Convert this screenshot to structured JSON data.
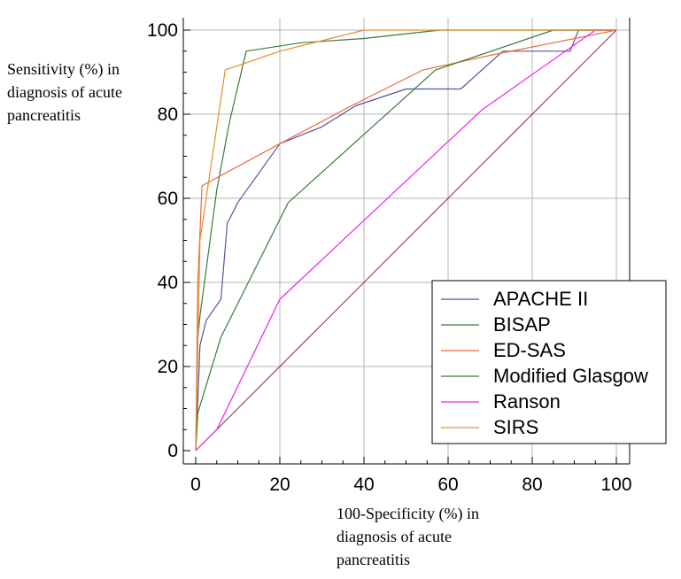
{
  "chart_data": {
    "type": "line",
    "title": "",
    "xlabel": [
      "100-Specificity (%) in",
      "diagnosis of acute",
      "pancreatitis"
    ],
    "ylabel": [
      "Sensitivity (%) in",
      "diagnosis of acute",
      "pancreatitis"
    ],
    "xlim": [
      0,
      100
    ],
    "ylim": [
      0,
      100
    ],
    "x_ticks": [
      "0",
      "20",
      "40",
      "60",
      "80",
      "100"
    ],
    "y_ticks": [
      "0",
      "20",
      "40",
      "60",
      "80",
      "100"
    ],
    "grid": true,
    "legend_position": "lower-right",
    "diagonal_color": "#8b3a3a",
    "series": [
      {
        "name": "APACHE II",
        "color": "#55559a",
        "points": [
          [
            0,
            0
          ],
          [
            0.5,
            12
          ],
          [
            1,
            25
          ],
          [
            2.5,
            31
          ],
          [
            6,
            36
          ],
          [
            7.5,
            54
          ],
          [
            10,
            59
          ],
          [
            20,
            73
          ],
          [
            30,
            77
          ],
          [
            38,
            82
          ],
          [
            50,
            86
          ],
          [
            63,
            86
          ],
          [
            73,
            95
          ],
          [
            89,
            95
          ],
          [
            91,
            100
          ],
          [
            100,
            100
          ]
        ]
      },
      {
        "name": "BISAP",
        "color": "#3c7a3c",
        "points": [
          [
            0,
            0
          ],
          [
            0.5,
            27
          ],
          [
            1,
            32
          ],
          [
            5,
            62
          ],
          [
            8,
            78
          ],
          [
            12,
            95
          ],
          [
            25,
            97
          ],
          [
            40,
            98
          ],
          [
            58,
            100
          ],
          [
            100,
            100
          ]
        ]
      },
      {
        "name": "ED-SAS",
        "color": "#ee6a3c",
        "points": [
          [
            0,
            0
          ],
          [
            0.5,
            40
          ],
          [
            1.5,
            63
          ],
          [
            20,
            73
          ],
          [
            37,
            82
          ],
          [
            54,
            90.5
          ],
          [
            70,
            94
          ],
          [
            85,
            97
          ],
          [
            95,
            99
          ],
          [
            100,
            100
          ]
        ]
      },
      {
        "name": "Modified Glasgow",
        "color": "#3c7a3c",
        "points": [
          [
            0,
            0
          ],
          [
            0.5,
            9
          ],
          [
            6,
            27
          ],
          [
            22,
            59
          ],
          [
            57,
            90.5
          ],
          [
            85,
            100
          ],
          [
            100,
            100
          ]
        ]
      },
      {
        "name": "Ranson",
        "color": "#ee22ee",
        "points": [
          [
            0,
            0
          ],
          [
            5,
            5
          ],
          [
            20,
            36
          ],
          [
            68,
            81
          ],
          [
            95,
            100
          ],
          [
            100,
            100
          ]
        ]
      },
      {
        "name": "SIRS",
        "color": "#e68d2e",
        "points": [
          [
            0,
            0
          ],
          [
            1,
            50
          ],
          [
            7,
            90.5
          ],
          [
            20,
            95
          ],
          [
            40,
            100
          ],
          [
            100,
            100
          ]
        ]
      }
    ]
  }
}
